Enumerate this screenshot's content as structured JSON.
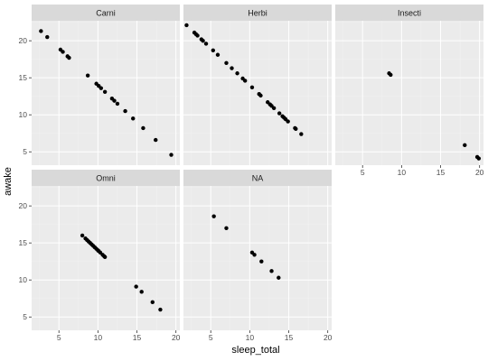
{
  "chart_data": {
    "type": "scatter",
    "xlabel": "sleep_total",
    "ylabel": "awake",
    "x_ticks": [
      5,
      10,
      15,
      20
    ],
    "y_ticks": [
      5,
      10,
      15,
      20
    ],
    "xlim": [
      1.5,
      20.5
    ],
    "ylim": [
      3.2,
      22.7
    ],
    "grid": true,
    "facet_layout": "3 columns x 2 rows",
    "point_color": "#000000",
    "panel_background": "#ebebeb",
    "strip_background": "#d9d9d9",
    "panels": [
      {
        "label": "Carni",
        "points": [
          [
            2.7,
            21.3
          ],
          [
            3.5,
            20.5
          ],
          [
            5.2,
            18.8
          ],
          [
            5.5,
            18.5
          ],
          [
            6.1,
            17.9
          ],
          [
            6.3,
            17.7
          ],
          [
            8.7,
            15.3
          ],
          [
            9.8,
            14.2
          ],
          [
            10.1,
            13.9
          ],
          [
            10.4,
            13.6
          ],
          [
            10.9,
            13.1
          ],
          [
            11.8,
            12.2
          ],
          [
            12.1,
            11.9
          ],
          [
            12.5,
            11.5
          ],
          [
            13.5,
            10.5
          ],
          [
            14.5,
            9.5
          ],
          [
            15.8,
            8.2
          ],
          [
            17.4,
            6.6
          ],
          [
            19.4,
            4.6
          ]
        ]
      },
      {
        "label": "Herbi",
        "points": [
          [
            1.9,
            22.1
          ],
          [
            2.9,
            21.1
          ],
          [
            3.1,
            20.9
          ],
          [
            3.3,
            20.7
          ],
          [
            3.8,
            20.2
          ],
          [
            4.0,
            20.0
          ],
          [
            4.4,
            19.6
          ],
          [
            5.3,
            18.7
          ],
          [
            5.9,
            18.1
          ],
          [
            7.0,
            17.0
          ],
          [
            7.7,
            16.3
          ],
          [
            8.4,
            15.6
          ],
          [
            9.1,
            14.9
          ],
          [
            9.4,
            14.6
          ],
          [
            10.3,
            13.7
          ],
          [
            11.2,
            12.8
          ],
          [
            11.4,
            12.6
          ],
          [
            12.3,
            11.7
          ],
          [
            12.6,
            11.4
          ],
          [
            12.8,
            11.2
          ],
          [
            13.1,
            10.9
          ],
          [
            13.8,
            10.2
          ],
          [
            14.2,
            9.8
          ],
          [
            14.4,
            9.6
          ],
          [
            14.6,
            9.4
          ],
          [
            14.9,
            9.1
          ],
          [
            15.8,
            8.2
          ],
          [
            15.9,
            8.1
          ],
          [
            16.6,
            7.4
          ]
        ]
      },
      {
        "label": "Insecti",
        "points": [
          [
            8.4,
            15.6
          ],
          [
            8.6,
            15.4
          ],
          [
            18.1,
            5.9
          ],
          [
            19.7,
            4.3
          ],
          [
            19.9,
            4.1
          ]
        ]
      },
      {
        "label": "Omni",
        "points": [
          [
            8.0,
            16.0
          ],
          [
            8.4,
            15.6
          ],
          [
            8.6,
            15.4
          ],
          [
            8.8,
            15.2
          ],
          [
            9.0,
            15.0
          ],
          [
            9.2,
            14.8
          ],
          [
            9.4,
            14.6
          ],
          [
            9.6,
            14.4
          ],
          [
            9.8,
            14.2
          ],
          [
            10.0,
            14.0
          ],
          [
            10.1,
            13.9
          ],
          [
            10.3,
            13.7
          ],
          [
            10.6,
            13.4
          ],
          [
            10.8,
            13.2
          ],
          [
            10.9,
            13.1
          ],
          [
            14.9,
            9.1
          ],
          [
            15.6,
            8.4
          ],
          [
            17.0,
            7.0
          ],
          [
            18.0,
            6.0
          ]
        ]
      },
      {
        "label": "NA",
        "points": [
          [
            5.4,
            18.6
          ],
          [
            7.0,
            17.0
          ],
          [
            10.3,
            13.7
          ],
          [
            10.6,
            13.4
          ],
          [
            11.5,
            12.5
          ],
          [
            12.8,
            11.2
          ],
          [
            13.7,
            10.3
          ]
        ]
      }
    ]
  }
}
